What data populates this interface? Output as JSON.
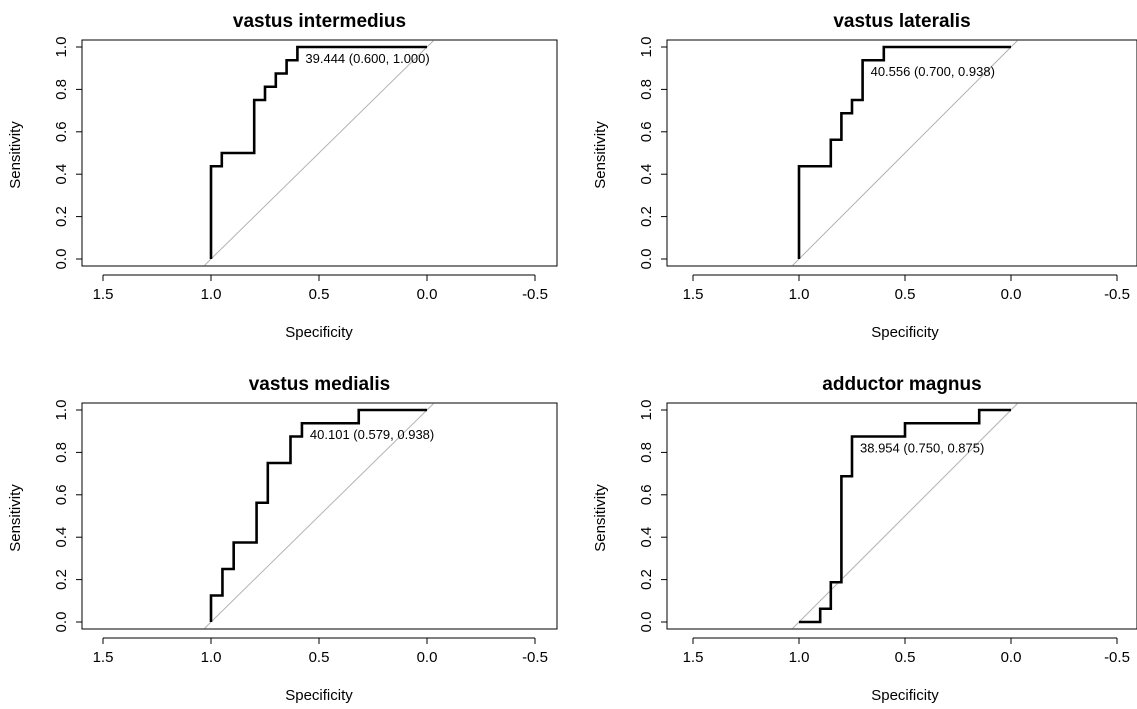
{
  "figure": {
    "colors": {
      "curve": "#000000",
      "diagonal": "#b3b3b3",
      "frame": "#000000",
      "background": "#ffffff"
    }
  },
  "chart_data": [
    {
      "type": "line",
      "title": "vastus intermedius",
      "xlabel": "Specificity",
      "ylabel": "Sensitivity",
      "x_reversed": true,
      "xlim": [
        1.5,
        -0.5
      ],
      "ylim": [
        0,
        1
      ],
      "xticks": [
        "1.5",
        "1.0",
        "0.5",
        "0.0",
        "-0.5"
      ],
      "yticks": [
        "0.0",
        "0.2",
        "0.4",
        "0.6",
        "0.8",
        "1.0"
      ],
      "series": [
        {
          "x": [
            1.0,
            1.0,
            0.95,
            0.95,
            0.8,
            0.8,
            0.75,
            0.75,
            0.7,
            0.7,
            0.65,
            0.65,
            0.6,
            0.6,
            0.0
          ],
          "y": [
            0.0,
            0.4375,
            0.4375,
            0.5,
            0.5,
            0.75,
            0.75,
            0.8125,
            0.8125,
            0.875,
            0.875,
            0.9375,
            0.9375,
            1.0,
            1.0
          ]
        }
      ],
      "annotation": {
        "text": "39.444 (0.600, 1.000)",
        "x": 0.6,
        "y": 1.0
      }
    },
    {
      "type": "line",
      "title": "vastus lateralis",
      "xlabel": "Specificity",
      "ylabel": "Sensitivity",
      "x_reversed": true,
      "xlim": [
        1.5,
        -0.5
      ],
      "ylim": [
        0,
        1
      ],
      "xticks": [
        "1.5",
        "1.0",
        "0.5",
        "0.0",
        "-0.5"
      ],
      "yticks": [
        "0.0",
        "0.2",
        "0.4",
        "0.6",
        "0.8",
        "1.0"
      ],
      "series": [
        {
          "x": [
            1.0,
            1.0,
            0.85,
            0.85,
            0.8,
            0.8,
            0.75,
            0.75,
            0.7,
            0.7,
            0.6,
            0.6,
            0.0
          ],
          "y": [
            0.0,
            0.4375,
            0.4375,
            0.5625,
            0.5625,
            0.6875,
            0.6875,
            0.75,
            0.75,
            0.9375,
            0.9375,
            1.0,
            1.0
          ]
        }
      ],
      "annotation": {
        "text": "40.556 (0.700, 0.938)",
        "x": 0.7,
        "y": 0.938
      }
    },
    {
      "type": "line",
      "title": "vastus medialis",
      "xlabel": "Specificity",
      "ylabel": "Sensitivity",
      "x_reversed": true,
      "xlim": [
        1.5,
        -0.5
      ],
      "ylim": [
        0,
        1
      ],
      "xticks": [
        "1.5",
        "1.0",
        "0.5",
        "0.0",
        "-0.5"
      ],
      "yticks": [
        "0.0",
        "0.2",
        "0.4",
        "0.6",
        "0.8",
        "1.0"
      ],
      "series": [
        {
          "x": [
            1.0,
            1.0,
            0.947,
            0.947,
            0.895,
            0.895,
            0.789,
            0.789,
            0.737,
            0.737,
            0.632,
            0.632,
            0.579,
            0.579,
            0.316,
            0.316,
            0.0
          ],
          "y": [
            0.0,
            0.125,
            0.125,
            0.25,
            0.25,
            0.375,
            0.375,
            0.5625,
            0.5625,
            0.75,
            0.75,
            0.875,
            0.875,
            0.9375,
            0.9375,
            1.0,
            1.0
          ]
        }
      ],
      "annotation": {
        "text": "40.101 (0.579, 0.938)",
        "x": 0.579,
        "y": 0.938
      }
    },
    {
      "type": "line",
      "title": "adductor magnus",
      "xlabel": "Specificity",
      "ylabel": "Sensitivity",
      "x_reversed": true,
      "xlim": [
        1.5,
        -0.5
      ],
      "ylim": [
        0,
        1
      ],
      "xticks": [
        "1.5",
        "1.0",
        "0.5",
        "0.0",
        "-0.5"
      ],
      "yticks": [
        "0.0",
        "0.2",
        "0.4",
        "0.6",
        "0.8",
        "1.0"
      ],
      "series": [
        {
          "x": [
            1.0,
            0.9,
            0.9,
            0.85,
            0.85,
            0.8,
            0.8,
            0.75,
            0.75,
            0.5,
            0.5,
            0.15,
            0.15,
            0.0
          ],
          "y": [
            0.0,
            0.0,
            0.0625,
            0.0625,
            0.1875,
            0.1875,
            0.6875,
            0.6875,
            0.875,
            0.875,
            0.9375,
            0.9375,
            1.0,
            1.0
          ]
        }
      ],
      "annotation": {
        "text": "38.954 (0.750, 0.875)",
        "x": 0.75,
        "y": 0.875
      }
    }
  ]
}
